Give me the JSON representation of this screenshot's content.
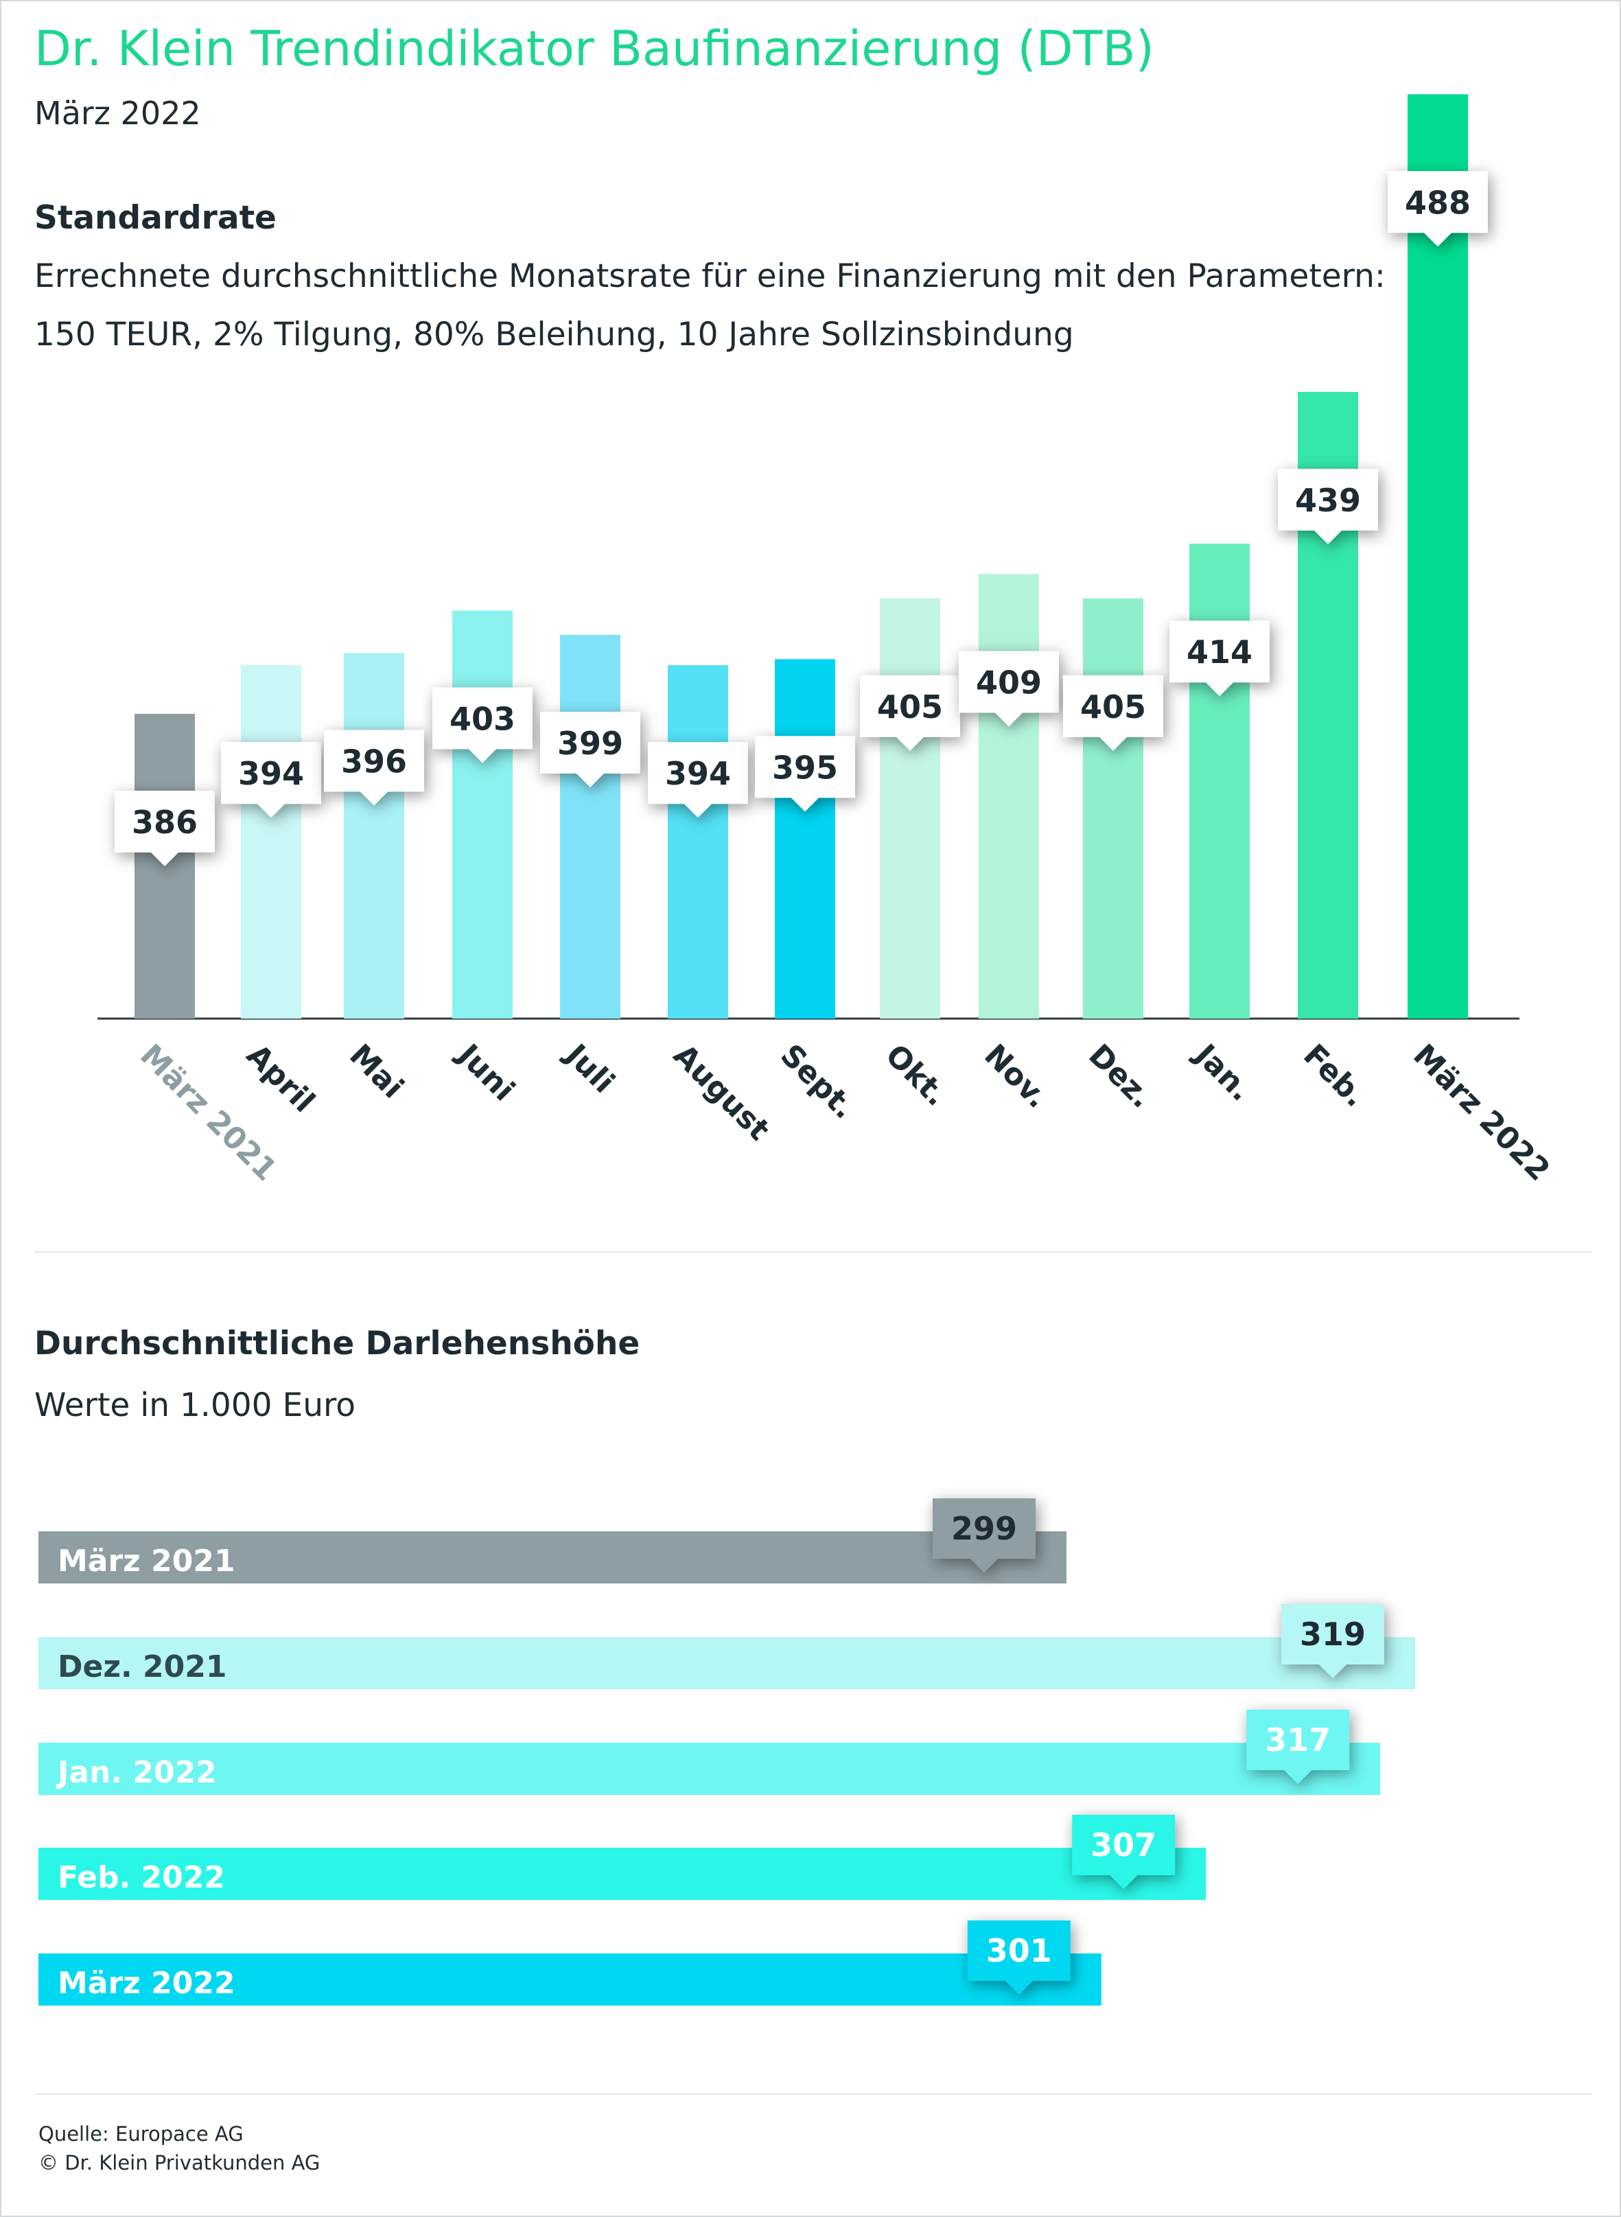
{
  "header": {
    "title": "Dr. Klein Trendindikator Baufinanzierung (DTB)",
    "subtitle": "März 2022"
  },
  "colors": {
    "title": "#1dd68f",
    "text": "#1e2b33",
    "grey": "#8e9ea3"
  },
  "chart_data": [
    {
      "type": "bar",
      "title": "Standardrate",
      "description_lines": [
        "Errechnete durchschnittliche Monatsrate für eine Finanzierung mit den Parametern:",
        "150 TEUR, 2% Tilgung, 80% Beleihung, 10 Jahre Sollzinsbindung"
      ],
      "categories": [
        "März 2021",
        "April",
        "Mai",
        "Juni",
        "Juli",
        "August",
        "Sept.",
        "Okt.",
        "Nov.",
        "Dez.",
        "Jan.",
        "Feb.",
        "März 2022"
      ],
      "values": [
        386,
        394,
        396,
        403,
        399,
        394,
        395,
        405,
        409,
        405,
        414,
        439,
        488
      ],
      "colors": [
        "#8e9ea3",
        "#c9f6f6",
        "#a8f1f5",
        "#8af1ee",
        "#7fe3f7",
        "#52e1f5",
        "#00d4f1",
        "#c4f5e3",
        "#b3f4d9",
        "#8ef0cb",
        "#67edbb",
        "#34e6aa",
        "#00db8f"
      ],
      "grid": false,
      "legend": "none"
    },
    {
      "type": "bar",
      "orientation": "horizontal",
      "title": "Durchschnittliche Darlehenshöhe",
      "subtitle": "Werte in 1.000 Euro",
      "categories": [
        "März 2021",
        "Dez. 2021",
        "Jan. 2022",
        "Feb. 2022",
        "März 2022"
      ],
      "values": [
        299,
        319,
        317,
        307,
        301
      ],
      "colors": [
        "#8e9ea3",
        "#b5f7f4",
        "#6df6f2",
        "#2af6e7",
        "#00d8f1"
      ],
      "grid": false,
      "legend": "none"
    }
  ],
  "footer": {
    "source": "Quelle: Europace AG",
    "copyright": "© Dr. Klein Privatkunden AG"
  }
}
